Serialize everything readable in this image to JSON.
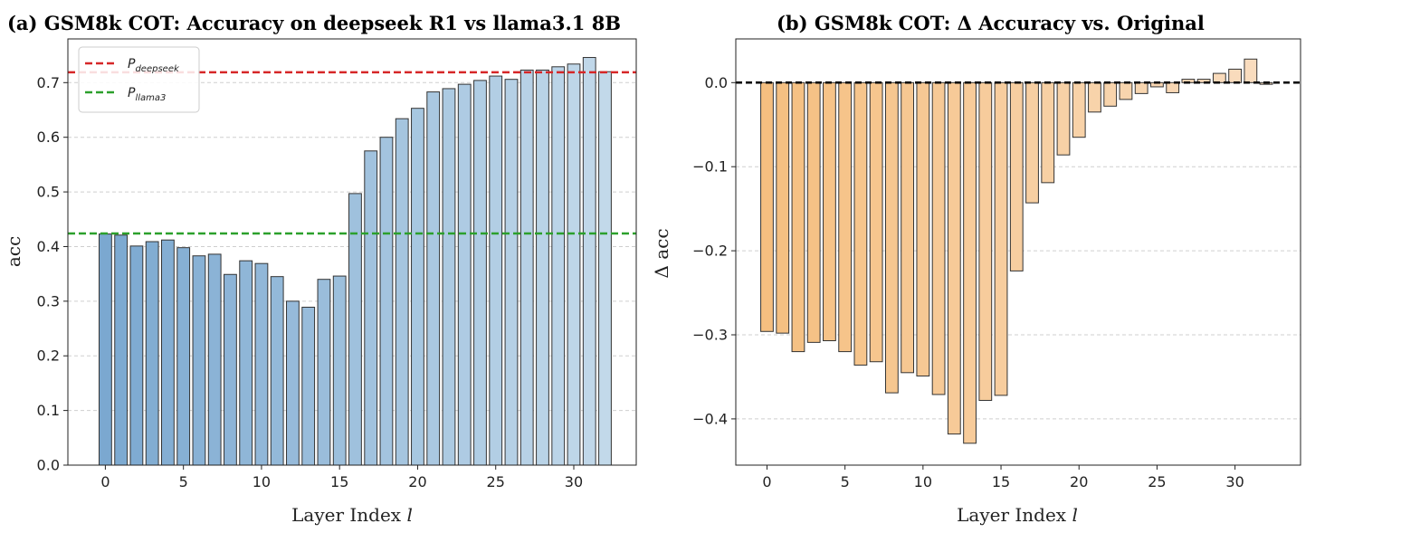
{
  "chart_data": [
    {
      "type": "bar",
      "title": "(a) GSM8k COT: Accuracy on deepseek R1 vs llama3.1 8B",
      "xlabel": "Layer Index ",
      "xlabel_var": "l",
      "ylabel": "acc",
      "xlim": [
        -2.4,
        34.0
      ],
      "ylim": [
        0,
        0.78
      ],
      "xticks": [
        0,
        5,
        10,
        15,
        20,
        25,
        30
      ],
      "yticks": [
        0.0,
        0.1,
        0.2,
        0.3,
        0.4,
        0.5,
        0.6,
        0.7
      ],
      "ytick_labels": [
        "0.0",
        "0.1",
        "0.2",
        "0.3",
        "0.4",
        "0.5",
        "0.6",
        "0.7"
      ],
      "grid": "y dashed",
      "color_start": "#7ba8d0",
      "color_end": "#c2d9ea",
      "x": [
        0,
        1,
        2,
        3,
        4,
        5,
        6,
        7,
        8,
        9,
        10,
        11,
        12,
        13,
        14,
        15,
        16,
        17,
        18,
        19,
        20,
        21,
        22,
        23,
        24,
        25,
        26,
        27,
        28,
        29,
        30,
        31,
        32
      ],
      "values": [
        0.423,
        0.421,
        0.401,
        0.409,
        0.412,
        0.398,
        0.383,
        0.386,
        0.349,
        0.374,
        0.369,
        0.345,
        0.3,
        0.289,
        0.34,
        0.346,
        0.497,
        0.575,
        0.6,
        0.634,
        0.653,
        0.683,
        0.689,
        0.697,
        0.704,
        0.712,
        0.706,
        0.723,
        0.723,
        0.729,
        0.734,
        0.746,
        0.72
      ],
      "reference_lines": [
        {
          "name": "P",
          "sub": "deepseek",
          "value": 0.719,
          "color": "#d62728"
        },
        {
          "name": "P",
          "sub": "llama3",
          "value": 0.424,
          "color": "#2ca02c"
        }
      ],
      "legend_position": "upper left"
    },
    {
      "type": "bar",
      "title": "(b) GSM8k COT: Δ Accuracy vs. Original",
      "xlabel": "Layer Index ",
      "xlabel_var": "l",
      "ylabel": "Δ acc",
      "xlim": [
        -2.0,
        34.2
      ],
      "ylim": [
        -0.455,
        0.052
      ],
      "xticks": [
        0,
        5,
        10,
        15,
        20,
        25,
        30
      ],
      "yticks": [
        0.0,
        -0.1,
        -0.2,
        -0.3,
        -0.4
      ],
      "ytick_labels": [
        "0.0",
        "−0.1",
        "−0.2",
        "−0.3",
        "−0.4"
      ],
      "grid": "y dashed",
      "color_start": "#f5bf80",
      "color_end": "#f9ddc0",
      "x": [
        0,
        1,
        2,
        3,
        4,
        5,
        6,
        7,
        8,
        9,
        10,
        11,
        12,
        13,
        14,
        15,
        16,
        17,
        18,
        19,
        20,
        21,
        22,
        23,
        24,
        25,
        26,
        27,
        28,
        29,
        30,
        31,
        32
      ],
      "values": [
        -0.296,
        -0.298,
        -0.32,
        -0.309,
        -0.307,
        -0.32,
        -0.336,
        -0.332,
        -0.369,
        -0.345,
        -0.349,
        -0.371,
        -0.418,
        -0.429,
        -0.378,
        -0.372,
        -0.224,
        -0.143,
        -0.119,
        -0.086,
        -0.065,
        -0.035,
        -0.028,
        -0.02,
        -0.013,
        -0.005,
        -0.012,
        0.004,
        0.004,
        0.011,
        0.016,
        0.028,
        -0.002
      ],
      "reference_lines": [
        {
          "name": "baseline",
          "value": 0.0,
          "color": "#000000"
        }
      ]
    }
  ]
}
